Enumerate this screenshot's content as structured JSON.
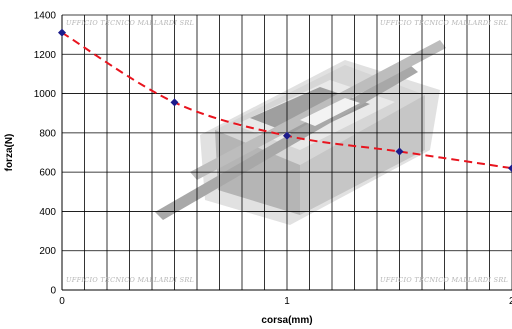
{
  "chart_data": {
    "type": "line",
    "xlabel": "corsa(mm)",
    "ylabel": "forza(N)",
    "xlim": [
      0,
      2
    ],
    "ylim": [
      0,
      1400
    ],
    "x_ticks": [
      "0",
      "1",
      "2"
    ],
    "y_ticks": [
      "0",
      "200",
      "400",
      "600",
      "800",
      "1000",
      "1200",
      "1400"
    ],
    "grid": true,
    "x_minor_step": 0.1,
    "y_step": 200,
    "series": [
      {
        "x": [
          0,
          0.5,
          1.0,
          1.5,
          2.0
        ],
        "y": [
          1310,
          955,
          785,
          705,
          620
        ],
        "line_color": "#e8141e",
        "line_style": "dashed",
        "marker_color": "#1c1c8c",
        "marker": "diamond"
      }
    ],
    "watermarks": [
      "UFFICIO TECNICO MALLARDI SRL",
      "UFFICIO TECNICO MALLARDI SRL",
      "UFFICIO TECNICO MALLARDI SRL",
      "UFFICIO TECNICO MALLARDI SRL"
    ]
  }
}
